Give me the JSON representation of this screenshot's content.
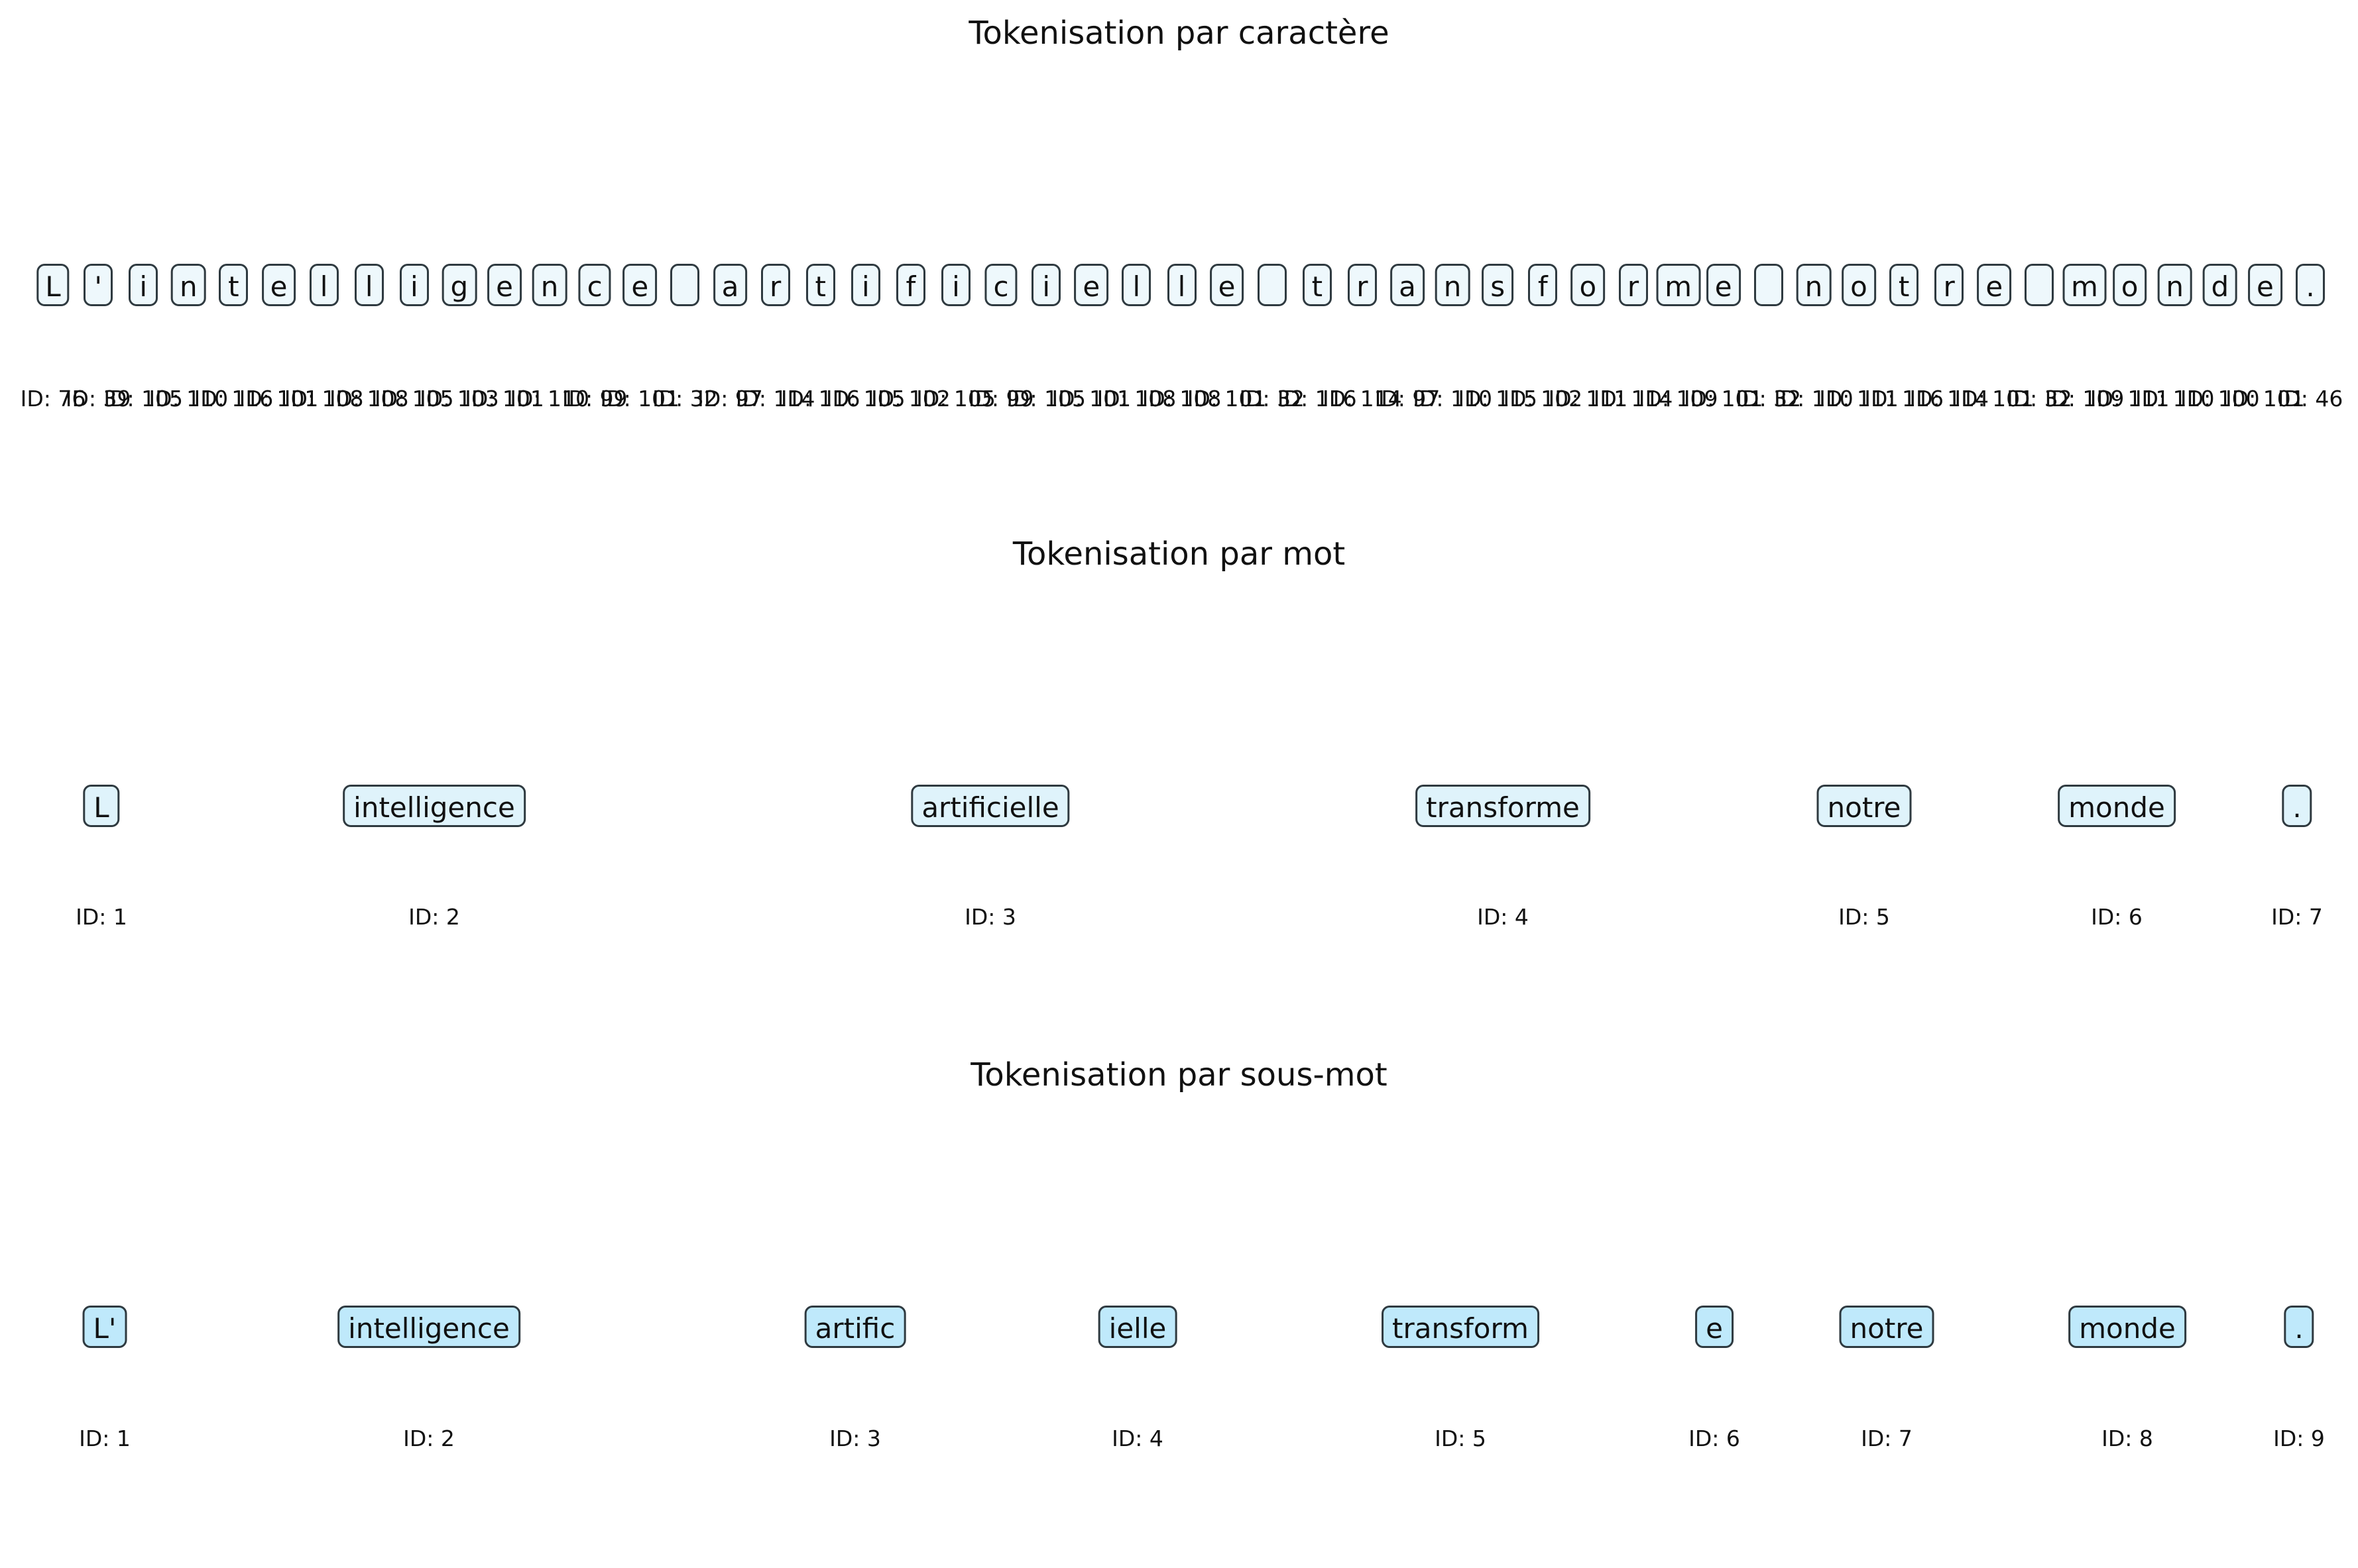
{
  "panels": [
    {
      "title": "Tokenisation par caractère",
      "box_color": "#eef8fc",
      "tokens": [
        {
          "text": "L",
          "id": "ID: 76"
        },
        {
          "text": "'",
          "id": "ID: 39"
        },
        {
          "text": "i",
          "id": "ID: 105"
        },
        {
          "text": "n",
          "id": "ID: 110"
        },
        {
          "text": "t",
          "id": "ID: 116"
        },
        {
          "text": "e",
          "id": "ID: 101"
        },
        {
          "text": "l",
          "id": "ID: 108"
        },
        {
          "text": "l",
          "id": "ID: 108"
        },
        {
          "text": "i",
          "id": "ID: 105"
        },
        {
          "text": "g",
          "id": "ID: 103"
        },
        {
          "text": "e",
          "id": "ID: 101"
        },
        {
          "text": "n",
          "id": "ID: 110"
        },
        {
          "text": "c",
          "id": "ID: 99"
        },
        {
          "text": "e",
          "id": "ID: 101"
        },
        {
          "text": " ",
          "id": "ID: 32"
        },
        {
          "text": "a",
          "id": "ID: 97"
        },
        {
          "text": "r",
          "id": "ID: 114"
        },
        {
          "text": "t",
          "id": "ID: 116"
        },
        {
          "text": "i",
          "id": "ID: 105"
        },
        {
          "text": "f",
          "id": "ID: 102"
        },
        {
          "text": "i",
          "id": "ID: 105"
        },
        {
          "text": "c",
          "id": "ID: 99"
        },
        {
          "text": "i",
          "id": "ID: 105"
        },
        {
          "text": "e",
          "id": "ID: 101"
        },
        {
          "text": "l",
          "id": "ID: 108"
        },
        {
          "text": "l",
          "id": "ID: 108"
        },
        {
          "text": "e",
          "id": "ID: 101"
        },
        {
          "text": " ",
          "id": "ID: 32"
        },
        {
          "text": "t",
          "id": "ID: 116"
        },
        {
          "text": "r",
          "id": "ID: 114"
        },
        {
          "text": "a",
          "id": "ID: 97"
        },
        {
          "text": "n",
          "id": "ID: 110"
        },
        {
          "text": "s",
          "id": "ID: 115"
        },
        {
          "text": "f",
          "id": "ID: 102"
        },
        {
          "text": "o",
          "id": "ID: 111"
        },
        {
          "text": "r",
          "id": "ID: 114"
        },
        {
          "text": "m",
          "id": "ID: 109"
        },
        {
          "text": "e",
          "id": "ID: 101"
        },
        {
          "text": " ",
          "id": "ID: 32"
        },
        {
          "text": "n",
          "id": "ID: 110"
        },
        {
          "text": "o",
          "id": "ID: 111"
        },
        {
          "text": "t",
          "id": "ID: 116"
        },
        {
          "text": "r",
          "id": "ID: 114"
        },
        {
          "text": "e",
          "id": "ID: 101"
        },
        {
          "text": " ",
          "id": "ID: 32"
        },
        {
          "text": "m",
          "id": "ID: 109"
        },
        {
          "text": "o",
          "id": "ID: 111"
        },
        {
          "text": "n",
          "id": "ID: 110"
        },
        {
          "text": "d",
          "id": "ID: 100"
        },
        {
          "text": "e",
          "id": "ID: 101"
        },
        {
          "text": ".",
          "id": "ID: 46"
        }
      ]
    },
    {
      "title": "Tokenisation par mot",
      "box_color": "#dff3fb",
      "tokens": [
        {
          "text": "L",
          "id": "ID: 1"
        },
        {
          "text": "intelligence",
          "id": "ID: 2"
        },
        {
          "text": "artificielle",
          "id": "ID: 3"
        },
        {
          "text": "transforme",
          "id": "ID: 4"
        },
        {
          "text": "notre",
          "id": "ID: 5"
        },
        {
          "text": "monde",
          "id": "ID: 6"
        },
        {
          "text": ".",
          "id": "ID: 7"
        }
      ]
    },
    {
      "title": "Tokenisation par sous-mot",
      "box_color": "#bfe9fb",
      "tokens": [
        {
          "text": "L'",
          "id": "ID: 1"
        },
        {
          "text": "intelligence",
          "id": "ID: 2"
        },
        {
          "text": "artific",
          "id": "ID: 3"
        },
        {
          "text": "ielle",
          "id": "ID: 4"
        },
        {
          "text": "transform",
          "id": "ID: 5"
        },
        {
          "text": "e",
          "id": "ID: 6"
        },
        {
          "text": "notre",
          "id": "ID: 7"
        },
        {
          "text": "monde",
          "id": "ID: 8"
        },
        {
          "text": ".",
          "id": "ID: 9"
        }
      ]
    }
  ]
}
